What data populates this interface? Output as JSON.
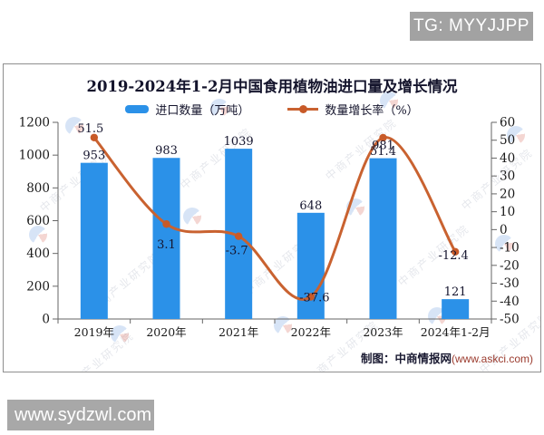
{
  "badges": {
    "tg": "TG: MYYJJPP",
    "site": "www.sydzwl.com"
  },
  "chart": {
    "title": "2019-2024年1-2月中国食用植物油进口量及增长情况",
    "credit_prefix": "制图：中商情报网",
    "credit_url": "(www.askci.com)",
    "watermark": "中商产业研究院",
    "colors": {
      "bar": "#2b91e8",
      "line": "#c96230",
      "marker": "#c85a28",
      "axis": "#666666",
      "label_text": "#15152e",
      "tick_text": "#1a1a1a",
      "badge_bg": "#a2a2a2"
    }
  },
  "chart_data": {
    "type": "bar+line",
    "title": "2019-2024年1-2月中国食用植物油进口量及增长情况",
    "categories": [
      "2019年",
      "2020年",
      "2021年",
      "2022年",
      "2023年",
      "2024年1-2月"
    ],
    "series": [
      {
        "name": "进口数量（万吨）",
        "type": "bar",
        "axis": "left",
        "values": [
          953,
          983,
          1039,
          648,
          981,
          121
        ]
      },
      {
        "name": "数量增长率（%）",
        "type": "line",
        "axis": "right",
        "values": [
          51.5,
          3.1,
          -3.7,
          -37.6,
          51.4,
          -12.4
        ]
      }
    ],
    "left_axis": {
      "range": [
        0,
        1200
      ],
      "ticks": [
        0,
        200,
        400,
        600,
        800,
        1000,
        1200
      ]
    },
    "right_axis": {
      "range": [
        -50,
        60
      ],
      "ticks": [
        -50,
        -40,
        -30,
        -20,
        -10,
        0,
        10,
        20,
        30,
        40,
        50,
        60
      ]
    },
    "legend_position": "top",
    "grid": false,
    "source_note": "制图：中商情报网(www.askci.com)"
  }
}
